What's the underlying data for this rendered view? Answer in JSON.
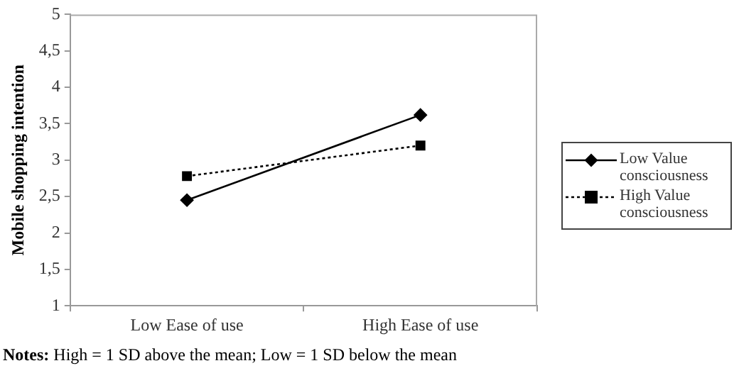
{
  "chart_data": {
    "type": "line",
    "ylabel": "Mobile shopping intention",
    "categories": [
      "Low Ease of use",
      "High Ease of use"
    ],
    "series": [
      {
        "name": "Low Value consciousness",
        "color": "#000000",
        "values": [
          2.45,
          3.62
        ],
        "marker": "diamond",
        "line_style": "solid"
      },
      {
        "name": "High Value consciousness",
        "color": "#000000",
        "values": [
          2.78,
          3.2
        ],
        "marker": "square",
        "line_style": "dotted"
      }
    ],
    "ylim": [
      1,
      5
    ],
    "yticks": [
      1,
      {
        "value": 1.5,
        "label": "1,5"
      },
      2,
      {
        "value": 2.5,
        "label": "2,5"
      },
      3,
      {
        "value": 3.5,
        "label": "3,5"
      },
      4,
      {
        "value": 4.5,
        "label": "4,5"
      },
      5
    ],
    "grid": false,
    "legend": "right",
    "annotations": [
      "Notes: High = 1 SD above the mean; Low = 1 SD below the mean"
    ]
  }
}
